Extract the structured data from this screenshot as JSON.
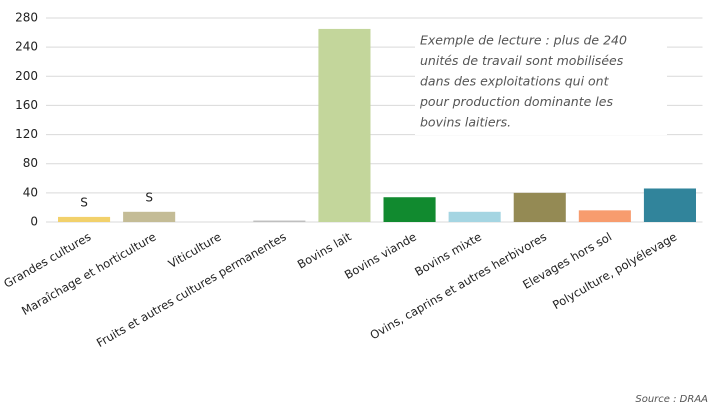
{
  "chart_data": {
    "type": "bar",
    "categories": [
      "Grandes cultures",
      "Maraîchage et horticulture",
      "Viticulture",
      "Fruits et autres cultures permanentes",
      "Bovins lait",
      "Bovins viande",
      "Bovins mixte",
      "Ovins, caprins et autres herbivores",
      "Elevages hors sol",
      "Polyculture, polyélevage"
    ],
    "values": [
      7,
      14,
      0,
      2,
      265,
      34,
      14,
      40,
      16,
      46
    ],
    "secret_labels": [
      "S",
      "S",
      null,
      null,
      null,
      null,
      null,
      null,
      null,
      null
    ],
    "colors": [
      "#f2d16b",
      "#c4bc96",
      "#c4bc96",
      "#bfbfbf",
      "#c3d69b",
      "#118a2f",
      "#a5d5e2",
      "#948a54",
      "#f79c6e",
      "#31849b"
    ],
    "ylim": [
      0,
      280
    ],
    "yticks": [
      0,
      40,
      80,
      120,
      160,
      200,
      240,
      280
    ],
    "grid": true,
    "annotation": [
      "Exemple de lecture : plus de 240",
      "unités de travail sont mobilisées",
      "dans des exploitations qui ont",
      "pour production dominante les",
      "bovins laitiers."
    ],
    "source": "Source : DRAA"
  }
}
